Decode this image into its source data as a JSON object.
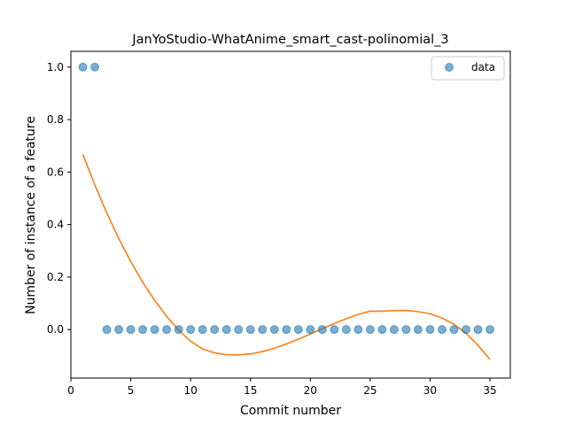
{
  "chart_data": {
    "type": "scatter",
    "title": "JanYoStudio-WhatAnime_smart_cast-polinomial_3",
    "xlabel": "Commit number",
    "ylabel": "Number of instance of a feature",
    "xlim": [
      0,
      36.7
    ],
    "ylim": [
      -0.185,
      1.06
    ],
    "xticks": [
      0,
      5,
      10,
      15,
      20,
      25,
      30,
      35
    ],
    "yticks": [
      0.0,
      0.2,
      0.4,
      0.6,
      0.8,
      1.0
    ],
    "ytick_labels": [
      "0.0",
      "0.2",
      "0.4",
      "0.6",
      "0.8",
      "1.0"
    ],
    "grid": false,
    "legend": {
      "position": "top-right",
      "entries": [
        "data"
      ]
    },
    "series": [
      {
        "name": "data",
        "kind": "scatter",
        "color": "#1f77b4",
        "x": [
          1,
          2,
          3,
          4,
          5,
          6,
          7,
          8,
          9,
          10,
          11,
          12,
          13,
          14,
          15,
          16,
          17,
          18,
          19,
          20,
          21,
          22,
          23,
          24,
          25,
          26,
          27,
          28,
          29,
          30,
          31,
          32,
          33,
          34,
          35
        ],
        "y": [
          1,
          1,
          0,
          0,
          0,
          0,
          0,
          0,
          0,
          0,
          0,
          0,
          0,
          0,
          0,
          0,
          0,
          0,
          0,
          0,
          0,
          0,
          0,
          0,
          0,
          0,
          0,
          0,
          0,
          0,
          0,
          0,
          0,
          0,
          0
        ]
      },
      {
        "kind": "line",
        "color": "#ff7f0e",
        "x": [
          1,
          2,
          3,
          4,
          5,
          6,
          7,
          8,
          9,
          10,
          11,
          12,
          13,
          14,
          15,
          16,
          17,
          18,
          19,
          20,
          21,
          22,
          23,
          24,
          25,
          26,
          27,
          28,
          29,
          30,
          31,
          32,
          33,
          34,
          35
        ],
        "y": [
          0.667,
          0.551,
          0.444,
          0.347,
          0.259,
          0.18,
          0.111,
          0.05,
          -0.002,
          -0.045,
          -0.074,
          -0.089,
          -0.096,
          -0.097,
          -0.093,
          -0.084,
          -0.071,
          -0.055,
          -0.037,
          -0.017,
          0.003,
          0.023,
          0.041,
          0.058,
          0.07,
          0.07,
          0.072,
          0.073,
          0.068,
          0.06,
          0.044,
          0.02,
          -0.014,
          -0.06,
          -0.114
        ]
      }
    ]
  }
}
